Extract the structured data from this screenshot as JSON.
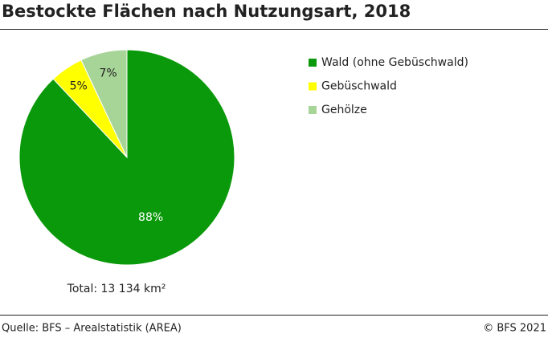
{
  "chart_data": {
    "type": "pie",
    "title": "Bestockte Flächen nach Nutzungsart, 2018",
    "categories": [
      "Wald (ohne Gebüschwald)",
      "Gebüschwald",
      "Gehölze"
    ],
    "values": [
      88,
      5,
      7
    ],
    "value_labels": [
      "88%",
      "5%",
      "7%"
    ],
    "colors": [
      "#0a990a",
      "#ffff00",
      "#a7d497"
    ],
    "note": "Total: 13 134 km²",
    "source": "Quelle: BFS – Arealstatistik (AREA)",
    "copyright": "© BFS 2021"
  }
}
